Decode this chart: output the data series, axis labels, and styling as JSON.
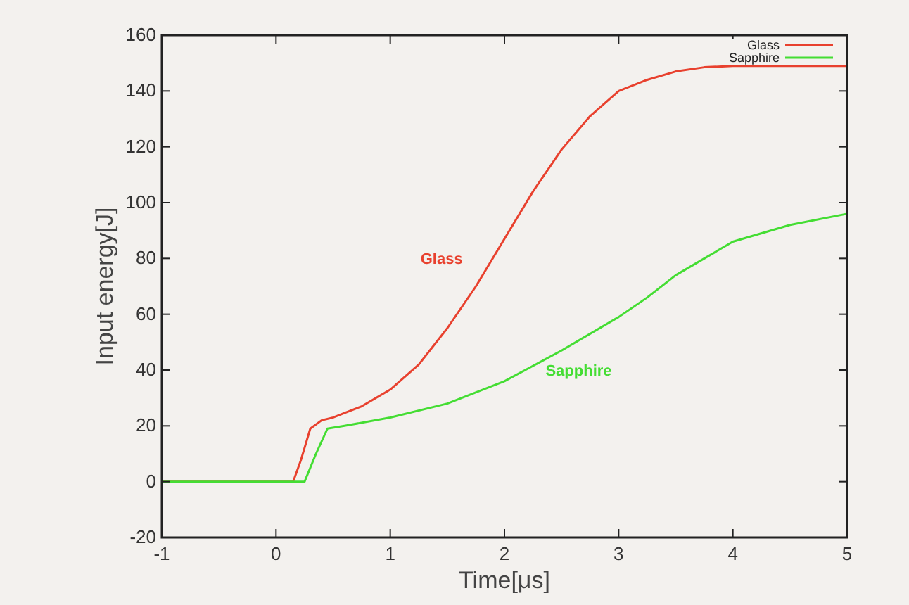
{
  "chart_data": {
    "type": "line",
    "xlabel": "Time[μs]",
    "ylabel": "Input energy[J]",
    "xlim": [
      -1,
      5
    ],
    "ylim": [
      -20,
      160
    ],
    "xticks": [
      -1,
      0,
      1,
      2,
      3,
      4,
      5
    ],
    "yticks": [
      -20,
      0,
      20,
      40,
      60,
      80,
      100,
      120,
      140,
      160
    ],
    "legend": "top right",
    "grid": false,
    "series": [
      {
        "name": "Glass",
        "color": "#e8412e",
        "x": [
          -1,
          0,
          0.15,
          0.22,
          0.3,
          0.4,
          0.5,
          0.75,
          1,
          1.25,
          1.5,
          1.75,
          2,
          2.25,
          2.5,
          2.75,
          3,
          3.25,
          3.5,
          3.75,
          4,
          4.5,
          5
        ],
        "values": [
          0,
          0,
          0,
          8,
          19,
          22,
          23,
          27,
          33,
          42,
          55,
          70,
          87,
          104,
          119,
          131,
          140,
          144,
          147,
          148.5,
          149,
          149,
          149
        ]
      },
      {
        "name": "Sapphire",
        "color": "#44dd33",
        "x": [
          -1,
          0,
          0.25,
          0.35,
          0.45,
          0.6,
          1,
          1.5,
          2,
          2.5,
          3,
          3.25,
          3.5,
          3.75,
          4,
          4.5,
          5
        ],
        "values": [
          0,
          0,
          0,
          10,
          19,
          20,
          23,
          28,
          36,
          47,
          59,
          66,
          74,
          80,
          86,
          92,
          96
        ]
      }
    ],
    "annotations": [
      "Glass",
      "Sapphire"
    ]
  }
}
